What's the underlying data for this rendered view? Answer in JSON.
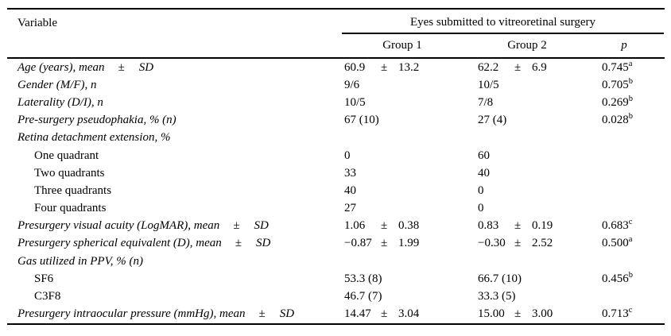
{
  "colors": {
    "text": "#000000",
    "rule": "#000000",
    "background": "#ffffff"
  },
  "table": {
    "header": {
      "variable": "Variable",
      "span": "Eyes submitted to vitreoretinal surgery",
      "group1": "Group 1",
      "group2": "Group 2",
      "p": "p"
    },
    "rows": [
      {
        "label": "Age (years), mean",
        "lpm": "±",
        "lsd": "SD",
        "style": "italic",
        "g1v": "60.9",
        "g1pm": "±",
        "g1sd": "13.2",
        "g2v": "62.2",
        "g2pm": "±",
        "g2sd": "6.9",
        "p": "0.745",
        "psup": "a"
      },
      {
        "label": "Gender (M/F), n",
        "style": "italic",
        "g1v": "9/6",
        "g2v": "10/5",
        "p": "0.705",
        "psup": "b"
      },
      {
        "label": "Laterality (D/I), n",
        "style": "italic",
        "g1v": "10/5",
        "g2v": "7/8",
        "p": "0.269",
        "psup": "b"
      },
      {
        "label": "Pre-surgery pseudophakia, % (n)",
        "style": "italic",
        "g1v": "67 (10)",
        "g2v": "27 (4)",
        "p": "0.028",
        "psup": "b"
      },
      {
        "label": "Retina detachment extension, %",
        "style": "italic"
      },
      {
        "label": "One quadrant",
        "style": "indent",
        "g1v": "0",
        "g2v": "60"
      },
      {
        "label": "Two quadrants",
        "style": "indent",
        "g1v": "33",
        "g2v": "40"
      },
      {
        "label": "Three quadrants",
        "style": "indent",
        "g1v": "40",
        "g2v": "0"
      },
      {
        "label": "Four quadrants",
        "style": "indent",
        "g1v": "27",
        "g2v": "0"
      },
      {
        "label": "Presurgery visual acuity (LogMAR), mean",
        "lpm": "±",
        "lsd": "SD",
        "style": "italic",
        "g1v": "1.06",
        "g1pm": "±",
        "g1sd": "0.38",
        "g2v": "0.83",
        "g2pm": "±",
        "g2sd": "0.19",
        "p": "0.683",
        "psup": "c"
      },
      {
        "label": "Presurgery spherical equivalent (D), mean",
        "lpm": "±",
        "lsd": "SD",
        "style": "italic",
        "g1v": "−0.87",
        "g1pm": "±",
        "g1sd": "1.99",
        "g2v": "−0.30",
        "g2pm": "±",
        "g2sd": "2.52",
        "p": "0.500",
        "psup": "a"
      },
      {
        "label": "Gas utilized in PPV, % (n)",
        "style": "italic"
      },
      {
        "label": "SF6",
        "style": "indent",
        "g1v": "53.3 (8)",
        "g2v": "66.7 (10)",
        "p": "0.456",
        "psup": "b"
      },
      {
        "label": "C3F8",
        "style": "indent",
        "g1v": "46.7 (7)",
        "g2v": "33.3 (5)"
      },
      {
        "label": "Presurgery intraocular pressure (mmHg), mean",
        "lpm": "±",
        "lsd": "SD",
        "style": "italic",
        "g1v": "14.47",
        "g1pm": "±",
        "g1sd": "3.04",
        "g2v": "15.00",
        "g2pm": "±",
        "g2sd": "3.00",
        "p": "0.713",
        "psup": "c"
      }
    ]
  }
}
